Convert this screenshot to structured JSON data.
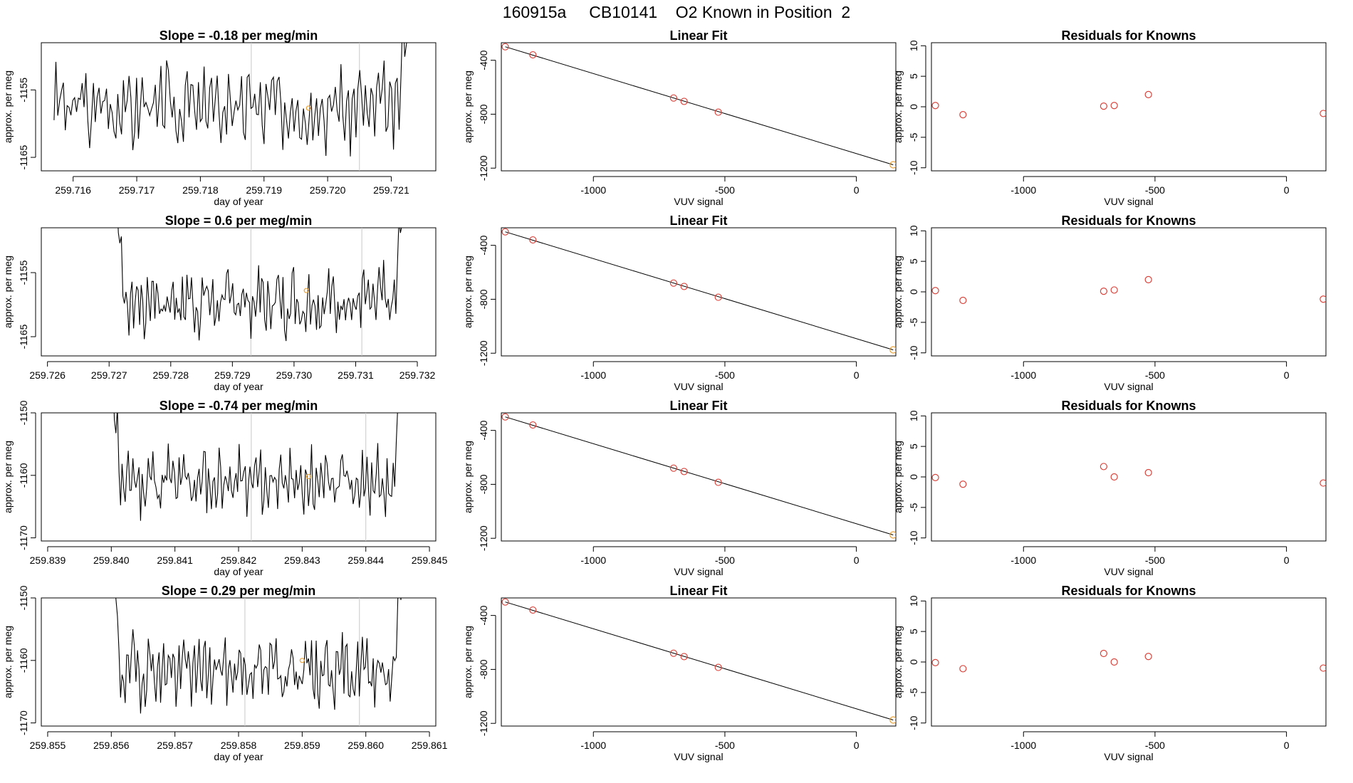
{
  "page": {
    "title": "160915a     CB10141    O2 Known in Position  2"
  },
  "colors": {
    "axis": "#000000",
    "series": "#000000",
    "marker_red": "#d9443c",
    "marker_orange": "#e8a23a",
    "window_line": "#c8c8c8"
  },
  "chart_data": [
    {
      "type": "line",
      "panel": "time-series",
      "row": 1,
      "title": "Slope =  -0.18  per meg/min",
      "xlabel": "day of year",
      "ylabel": "approx. per meg",
      "xlim": [
        259.7155,
        259.7217
      ],
      "ylim": [
        -1167.0,
        -1148.0
      ],
      "xticks": [
        259.716,
        259.717,
        259.718,
        259.719,
        259.72,
        259.721
      ],
      "xtick_labels": [
        "259.716",
        "259.717",
        "259.718",
        "259.719",
        "259.720",
        "259.721"
      ],
      "yticks": [
        -1165,
        -1155
      ],
      "ytick_labels": [
        "-1165",
        "-1155"
      ],
      "x_start": 259.7157,
      "x_end": 259.7213,
      "mean": -1157.5,
      "amplitude": 5.0,
      "seed": 3,
      "window_lines": [
        259.7188,
        259.7205
      ],
      "highlight_point": [
        259.7197,
        -1157.7
      ]
    },
    {
      "type": "scatter",
      "panel": "linear-fit",
      "row": 1,
      "title": "Linear Fit",
      "xlabel": "VUV signal",
      "ylabel": "approx. per meg",
      "xlim": [
        -1350,
        150
      ],
      "ylim": [
        -1220,
        -270
      ],
      "xticks": [
        -1000,
        -500,
        0
      ],
      "xtick_labels": [
        "-1000",
        "-500",
        "0"
      ],
      "yticks": [
        -1200,
        -800,
        -400
      ],
      "ytick_labels": [
        "-1200",
        "-800",
        "-400"
      ],
      "x": [
        -1335,
        -1230,
        -695,
        -655,
        -525,
        140
      ],
      "y": [
        -300,
        -360,
        -680,
        -705,
        -785,
        -1175
      ],
      "fit_line": [
        [
          -1335,
          -300
        ],
        [
          140,
          -1175
        ]
      ],
      "highlight_index": 5
    },
    {
      "type": "scatter",
      "panel": "residuals",
      "row": 1,
      "title": "Residuals for Knowns",
      "xlabel": "VUV signal",
      "ylabel": "approx. per meg",
      "xlim": [
        -1350,
        150
      ],
      "ylim": [
        -10.5,
        10.5
      ],
      "xticks": [
        -1000,
        -500,
        0
      ],
      "xtick_labels": [
        "-1000",
        "-500",
        "0"
      ],
      "yticks": [
        -10,
        -5,
        0,
        5,
        10
      ],
      "ytick_labels": [
        "-10",
        "-5",
        "0",
        "5",
        "10"
      ],
      "x": [
        -1335,
        -1230,
        -695,
        -655,
        -525,
        140
      ],
      "y": [
        0.2,
        -1.3,
        0.1,
        0.2,
        2.0,
        -1.1
      ]
    },
    {
      "type": "line",
      "panel": "time-series",
      "row": 2,
      "title": "Slope =  0.6  per meg/min",
      "xlabel": "day of year",
      "ylabel": "approx. per meg",
      "xlim": [
        259.7259,
        259.7323
      ],
      "ylim": [
        -1168.0,
        -1148.0
      ],
      "xticks": [
        259.726,
        259.727,
        259.728,
        259.729,
        259.73,
        259.731,
        259.732
      ],
      "xtick_labels": [
        "259.726",
        "259.727",
        "259.728",
        "259.729",
        "259.730",
        "259.731",
        "259.732"
      ],
      "yticks": [
        -1165,
        -1155
      ],
      "ytick_labels": [
        "-1165",
        "-1155"
      ],
      "x_start": 259.7271,
      "x_end": 259.7318,
      "mean": -1159.5,
      "amplitude": 4.5,
      "seed": 7,
      "window_lines": [
        259.7293,
        259.7311
      ],
      "highlight_point": [
        259.7302,
        -1157.8
      ]
    },
    {
      "type": "scatter",
      "panel": "linear-fit",
      "row": 2,
      "title": "Linear Fit",
      "xlabel": "VUV signal",
      "ylabel": "approx. per meg",
      "xlim": [
        -1350,
        150
      ],
      "ylim": [
        -1220,
        -270
      ],
      "xticks": [
        -1000,
        -500,
        0
      ],
      "xtick_labels": [
        "-1000",
        "-500",
        "0"
      ],
      "yticks": [
        -1200,
        -800,
        -400
      ],
      "ytick_labels": [
        "-1200",
        "-800",
        "-400"
      ],
      "x": [
        -1335,
        -1230,
        -695,
        -655,
        -525,
        140
      ],
      "y": [
        -300,
        -360,
        -680,
        -705,
        -785,
        -1175
      ],
      "fit_line": [
        [
          -1335,
          -300
        ],
        [
          140,
          -1175
        ]
      ],
      "highlight_index": 5
    },
    {
      "type": "scatter",
      "panel": "residuals",
      "row": 2,
      "title": "Residuals for Knowns",
      "xlabel": "VUV signal",
      "ylabel": "approx. per meg",
      "xlim": [
        -1350,
        150
      ],
      "ylim": [
        -10.5,
        10.5
      ],
      "xticks": [
        -1000,
        -500,
        0
      ],
      "xtick_labels": [
        "-1000",
        "-500",
        "0"
      ],
      "yticks": [
        -10,
        -5,
        0,
        5,
        10
      ],
      "ytick_labels": [
        "-10",
        "-5",
        "0",
        "5",
        "10"
      ],
      "x": [
        -1335,
        -1230,
        -695,
        -655,
        -525,
        140
      ],
      "y": [
        0.2,
        -1.4,
        0.1,
        0.3,
        2.0,
        -1.2
      ]
    },
    {
      "type": "line",
      "panel": "time-series",
      "row": 3,
      "title": "Slope =  -0.74  per meg/min",
      "xlabel": "day of year",
      "ylabel": "approx. per meg",
      "xlim": [
        259.8389,
        259.8451
      ],
      "ylim": [
        -1170.5,
        -1150.0
      ],
      "xticks": [
        259.839,
        259.84,
        259.841,
        259.842,
        259.843,
        259.844,
        259.845
      ],
      "xtick_labels": [
        "259.839",
        "259.840",
        "259.841",
        "259.842",
        "259.843",
        "259.844",
        "259.845"
      ],
      "yticks": [
        -1170,
        -1160,
        -1150
      ],
      "ytick_labels": [
        "-1170",
        "-1160",
        "-1150"
      ],
      "x_start": 259.84,
      "x_end": 259.8446,
      "mean": -1161.0,
      "amplitude": 4.5,
      "seed": 11,
      "window_lines": [
        259.8422,
        259.844
      ],
      "highlight_point": [
        259.8431,
        -1160.2
      ]
    },
    {
      "type": "scatter",
      "panel": "linear-fit",
      "row": 3,
      "title": "Linear Fit",
      "xlabel": "VUV signal",
      "ylabel": "approx. per meg",
      "xlim": [
        -1350,
        150
      ],
      "ylim": [
        -1220,
        -270
      ],
      "xticks": [
        -1000,
        -500,
        0
      ],
      "xtick_labels": [
        "-1000",
        "-500",
        "0"
      ],
      "yticks": [
        -1200,
        -800,
        -400
      ],
      "ytick_labels": [
        "-1200",
        "-800",
        "-400"
      ],
      "x": [
        -1335,
        -1230,
        -695,
        -655,
        -525,
        140
      ],
      "y": [
        -300,
        -360,
        -680,
        -705,
        -785,
        -1175
      ],
      "fit_line": [
        [
          -1335,
          -300
        ],
        [
          140,
          -1175
        ]
      ],
      "highlight_index": 5
    },
    {
      "type": "scatter",
      "panel": "residuals",
      "row": 3,
      "title": "Residuals for Knowns",
      "xlabel": "VUV signal",
      "ylabel": "approx. per meg",
      "xlim": [
        -1350,
        150
      ],
      "ylim": [
        -10.5,
        10.5
      ],
      "xticks": [
        -1000,
        -500,
        0
      ],
      "xtick_labels": [
        "-1000",
        "-500",
        "0"
      ],
      "yticks": [
        -10,
        -5,
        0,
        5,
        10
      ],
      "ytick_labels": [
        "-10",
        "-5",
        "0",
        "5",
        "10"
      ],
      "x": [
        -1335,
        -1230,
        -695,
        -655,
        -525,
        140
      ],
      "y": [
        -0.1,
        -1.2,
        1.7,
        0.0,
        0.7,
        -1.0
      ]
    },
    {
      "type": "line",
      "panel": "time-series",
      "row": 4,
      "title": "Slope =  0.29  per meg/min",
      "xlabel": "day of year",
      "ylabel": "approx. per meg",
      "xlim": [
        259.8549,
        259.8611
      ],
      "ylim": [
        -1170.5,
        -1150.0
      ],
      "xticks": [
        259.855,
        259.856,
        259.857,
        259.858,
        259.859,
        259.86,
        259.861
      ],
      "xtick_labels": [
        "259.855",
        "259.856",
        "259.857",
        "259.858",
        "259.859",
        "259.860",
        "259.861"
      ],
      "yticks": [
        -1170,
        -1160,
        -1150
      ],
      "ytick_labels": [
        "-1170",
        "-1160",
        "-1150"
      ],
      "x_start": 259.856,
      "x_end": 259.8606,
      "mean": -1161.5,
      "amplitude": 4.5,
      "seed": 19,
      "window_lines": [
        259.8581,
        259.8599
      ],
      "highlight_point": [
        259.859,
        -1160.0
      ]
    },
    {
      "type": "scatter",
      "panel": "linear-fit",
      "row": 4,
      "title": "Linear Fit",
      "xlabel": "VUV signal",
      "ylabel": "approx. per meg",
      "xlim": [
        -1350,
        150
      ],
      "ylim": [
        -1220,
        -270
      ],
      "xticks": [
        -1000,
        -500,
        0
      ],
      "xtick_labels": [
        "-1000",
        "-500",
        "0"
      ],
      "yticks": [
        -1200,
        -800,
        -400
      ],
      "ytick_labels": [
        "-1200",
        "-800",
        "-400"
      ],
      "x": [
        -1335,
        -1230,
        -695,
        -655,
        -525,
        140
      ],
      "y": [
        -300,
        -360,
        -680,
        -705,
        -785,
        -1175
      ],
      "fit_line": [
        [
          -1335,
          -300
        ],
        [
          140,
          -1175
        ]
      ],
      "highlight_index": 5
    },
    {
      "type": "scatter",
      "panel": "residuals",
      "row": 4,
      "title": "Residuals for Knowns",
      "xlabel": "VUV signal",
      "ylabel": "approx. per meg",
      "xlim": [
        -1350,
        150
      ],
      "ylim": [
        -10.5,
        10.5
      ],
      "xticks": [
        -1000,
        -500,
        0
      ],
      "xtick_labels": [
        "-1000",
        "-500",
        "0"
      ],
      "yticks": [
        -10,
        -5,
        0,
        5,
        10
      ],
      "ytick_labels": [
        "-10",
        "-5",
        "0",
        "5",
        "10"
      ],
      "x": [
        -1335,
        -1230,
        -695,
        -655,
        -525,
        140
      ],
      "y": [
        -0.1,
        -1.1,
        1.4,
        0.0,
        0.9,
        -1.0
      ]
    }
  ]
}
